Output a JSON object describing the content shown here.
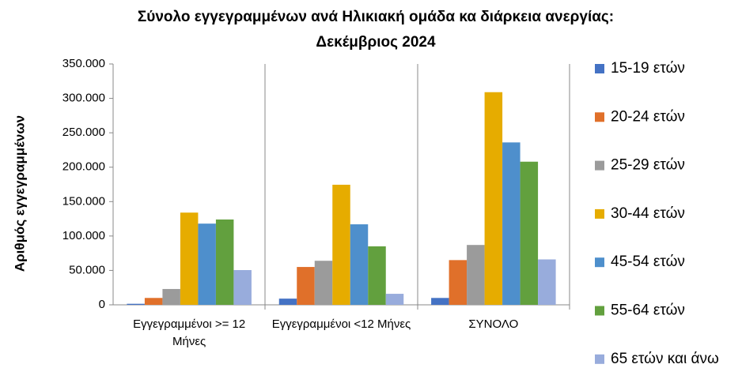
{
  "chart_data": {
    "type": "bar",
    "title": [
      "Σύνολο εγγεγραμμένων  ανά Ηλικιακή ομάδα κα διάρκεια ανεργίας:",
      "Δεκέμβριος  2024"
    ],
    "ylabel": "Αριθμός εγγεγραμμένων",
    "categories": [
      "Εγγεγραμμένοι  >= 12 Μήνες",
      "Εγγεγραμμένοι  <12 Μήνες",
      "ΣΥΝΟΛΟ"
    ],
    "series": [
      {
        "name": "15-19 ετών",
        "color": "#4472c4",
        "values": [
          1500,
          9000,
          10000
        ]
      },
      {
        "name": "20-24 ετών",
        "color": "#e0702a",
        "values": [
          10000,
          55000,
          65000
        ]
      },
      {
        "name": "25-29 ετών",
        "color": "#9b9b9b",
        "values": [
          23000,
          64000,
          87000
        ]
      },
      {
        "name": "30-44 ετών",
        "color": "#e6ac00",
        "values": [
          134000,
          174500,
          309000
        ]
      },
      {
        "name": "45-54 ετών",
        "color": "#4e8fcc",
        "values": [
          118000,
          117000,
          236000
        ]
      },
      {
        "name": "55-64 ετών",
        "color": "#62a03e",
        "values": [
          124000,
          85000,
          208000
        ]
      },
      {
        "name": "65 ετών και άνω",
        "color": "#98acdc",
        "values": [
          50500,
          16000,
          66000
        ]
      }
    ],
    "ylim": [
      0,
      350000
    ],
    "yticks": [
      0,
      {
        "value": 50000,
        "label": "50.000"
      },
      {
        "value": 100000,
        "label": "100.000"
      },
      {
        "value": 150000,
        "label": "150.000"
      },
      {
        "value": 200000,
        "label": "200.000"
      },
      {
        "value": 250000,
        "label": "250.000"
      },
      {
        "value": 300000,
        "label": "300.000"
      },
      {
        "value": 350000,
        "label": "350.000"
      }
    ],
    "grid": false,
    "legend": "right"
  }
}
